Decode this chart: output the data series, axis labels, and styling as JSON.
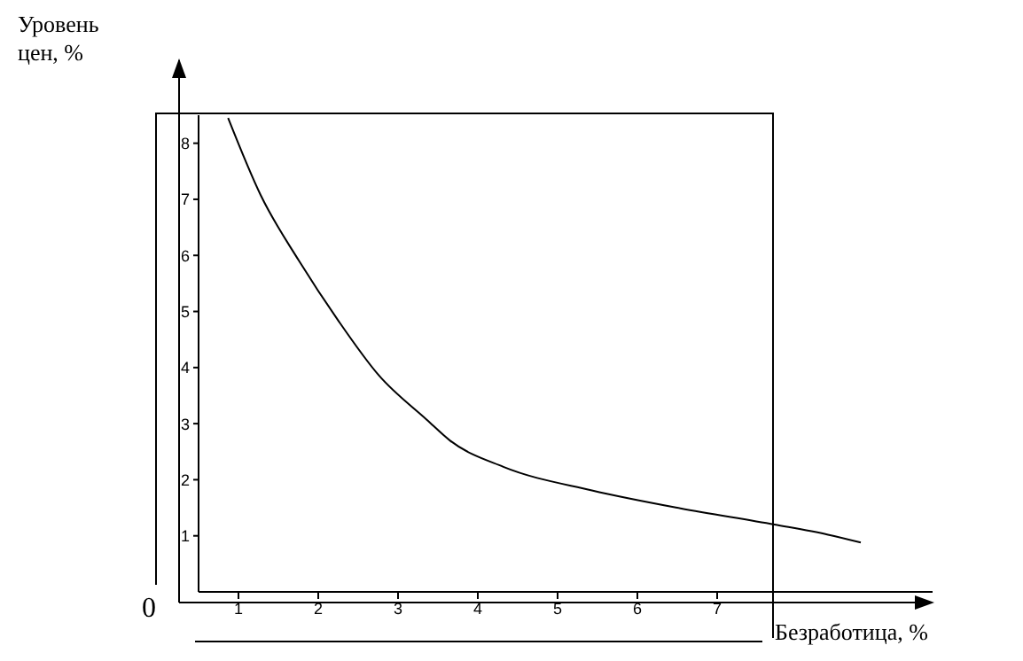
{
  "chart_data": {
    "type": "line",
    "xlabel": "Безработица, %",
    "ylabel": "Уровень цен, %",
    "x": [
      0.87,
      1.28,
      1.76,
      2.24,
      2.76,
      3.36,
      3.65,
      4.32,
      5.43,
      6.54,
      7.72,
      8.39,
      8.8
    ],
    "values": [
      8.45,
      7.07,
      5.9,
      4.86,
      3.86,
      3.07,
      2.7,
      2.23,
      1.81,
      1.49,
      1.2,
      1.02,
      0.88
    ],
    "color": "#000000",
    "xlim": [
      0.5,
      9.7
    ],
    "xticks": [
      1,
      2,
      3,
      4,
      5,
      6,
      7
    ],
    "ylim": [
      0,
      8.5
    ],
    "yticks": [
      1,
      2,
      3,
      4,
      5,
      6,
      7,
      8
    ],
    "annotations": [
      "0"
    ]
  }
}
